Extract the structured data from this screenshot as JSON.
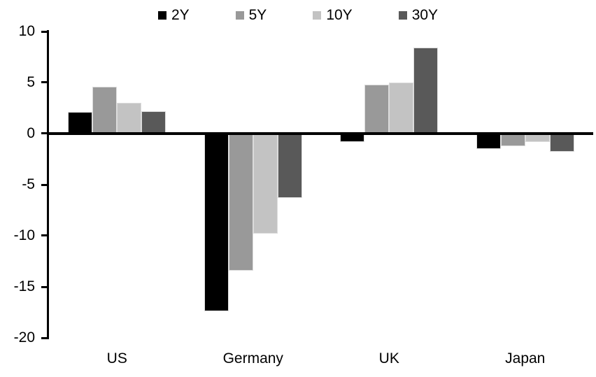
{
  "chart_data": {
    "type": "bar",
    "categories": [
      "US",
      "Germany",
      "UK",
      "Japan"
    ],
    "series": [
      {
        "name": "2Y",
        "color": "#000000",
        "values": [
          2.1,
          -17.4,
          -0.8,
          -1.5
        ]
      },
      {
        "name": "5Y",
        "color": "#999999",
        "values": [
          4.6,
          -13.4,
          4.8,
          -1.2
        ]
      },
      {
        "name": "10Y",
        "color": "#c3c3c3",
        "values": [
          3.0,
          -9.8,
          5.0,
          -0.8
        ]
      },
      {
        "name": "30Y",
        "color": "#595959",
        "values": [
          2.2,
          -6.3,
          8.4,
          -1.8
        ]
      }
    ],
    "title": "",
    "xlabel": "",
    "ylabel": "",
    "ylim": [
      -20,
      10
    ],
    "yticks": [
      10,
      5,
      0,
      -5,
      -10,
      -15,
      -20
    ],
    "legend_position": "top",
    "grid": false,
    "axis_color": "#000000",
    "background_color": "#ffffff"
  }
}
